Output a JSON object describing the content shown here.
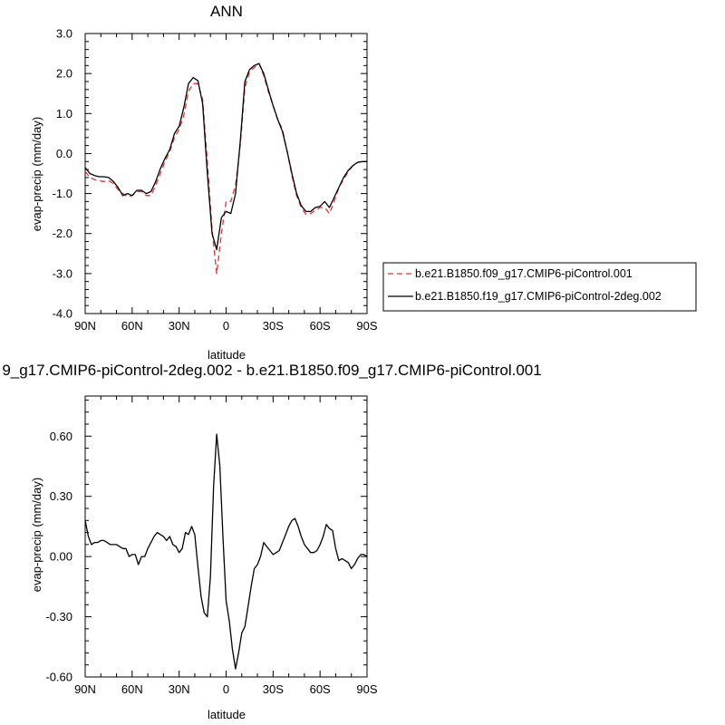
{
  "figure": {
    "top_title": "ANN",
    "bottom_title": "9_g17.CMIP6-piControl-2deg.002 - b.e21.B1850.f09_g17.CMIP6-piControl.001"
  },
  "colors": {
    "series1": "#e8302a",
    "series2": "#000000",
    "diff": "#000000",
    "frame": "#000000"
  },
  "chart_data": [
    {
      "type": "line",
      "title": "ANN",
      "xlabel": "latitude",
      "ylabel": "evap-precip (mm/day)",
      "xlim": [
        90,
        -90
      ],
      "ylim": [
        -4.0,
        3.0
      ],
      "x_ticks": [
        90,
        60,
        30,
        0,
        -30,
        -60,
        -90
      ],
      "x_tick_labels": [
        "90N",
        "60N",
        "30N",
        "0",
        "30S",
        "60S",
        "90S"
      ],
      "y_ticks": [
        -4.0,
        -3.0,
        -2.0,
        -1.0,
        0.0,
        1.0,
        2.0,
        3.0
      ],
      "y_tick_labels": [
        "-4.0",
        "-3.0",
        "-2.0",
        "-1.0",
        "0.0",
        "1.0",
        "2.0",
        "3.0"
      ],
      "grid": false,
      "legend_position": "right",
      "series": [
        {
          "name": "b.e21.B1850.f09_g17.CMIP6-piControl.001",
          "style": "dashed",
          "x": [
            90,
            87,
            84,
            81,
            78,
            75,
            72,
            69,
            66,
            63,
            60,
            57,
            54,
            51,
            48,
            45,
            42,
            39,
            36,
            33,
            30,
            27,
            24,
            21,
            18,
            15,
            12,
            9,
            6,
            3,
            0,
            -3,
            -6,
            -9,
            -12,
            -15,
            -18,
            -21,
            -24,
            -27,
            -30,
            -33,
            -36,
            -39,
            -42,
            -45,
            -48,
            -51,
            -54,
            -57,
            -60,
            -63,
            -66,
            -69,
            -72,
            -75,
            -78,
            -81,
            -84,
            -87,
            -90
          ],
          "y": [
            -0.45,
            -0.6,
            -0.65,
            -0.68,
            -0.7,
            -0.68,
            -0.75,
            -0.9,
            -1.0,
            -1.08,
            -1.05,
            -0.95,
            -0.95,
            -1.05,
            -1.05,
            -0.8,
            -0.5,
            -0.2,
            0.05,
            0.4,
            0.6,
            0.95,
            1.55,
            1.75,
            1.75,
            1.35,
            -0.2,
            -1.9,
            -3.0,
            -2.0,
            -1.2,
            -1.2,
            -0.8,
            0.2,
            1.65,
            2.05,
            2.15,
            2.25,
            1.95,
            1.55,
            1.2,
            0.85,
            0.6,
            0.05,
            -0.55,
            -1.05,
            -1.35,
            -1.52,
            -1.5,
            -1.42,
            -1.35,
            -1.35,
            -1.5,
            -1.2,
            -0.85,
            -0.65,
            -0.45,
            -0.3,
            -0.22,
            -0.2,
            -0.2
          ]
        },
        {
          "name": "b.e21.B1850.f19_g17.CMIP6-piControl-2deg.002",
          "style": "solid",
          "x": [
            90,
            87,
            84,
            81,
            78,
            75,
            72,
            69,
            66,
            63,
            60,
            57,
            54,
            51,
            48,
            45,
            42,
            39,
            36,
            33,
            30,
            27,
            24,
            21,
            18,
            15,
            12,
            9,
            6,
            3,
            0,
            -3,
            -6,
            -9,
            -12,
            -15,
            -18,
            -21,
            -24,
            -27,
            -30,
            -33,
            -36,
            -39,
            -42,
            -45,
            -48,
            -51,
            -54,
            -57,
            -60,
            -63,
            -66,
            -69,
            -72,
            -75,
            -78,
            -81,
            -84,
            -87,
            -90
          ],
          "y": [
            -0.35,
            -0.5,
            -0.55,
            -0.58,
            -0.58,
            -0.6,
            -0.7,
            -0.85,
            -1.05,
            -1.0,
            -1.05,
            -0.92,
            -0.92,
            -1.0,
            -0.95,
            -0.7,
            -0.38,
            -0.12,
            0.1,
            0.5,
            0.68,
            1.15,
            1.75,
            1.9,
            1.82,
            1.25,
            -0.5,
            -2.0,
            -2.4,
            -1.6,
            -1.45,
            -1.5,
            -1.0,
            0.3,
            1.8,
            2.1,
            2.2,
            2.25,
            2.0,
            1.6,
            1.2,
            0.85,
            0.55,
            0.05,
            -0.5,
            -1.0,
            -1.3,
            -1.45,
            -1.45,
            -1.35,
            -1.32,
            -1.2,
            -1.35,
            -1.1,
            -0.85,
            -0.6,
            -0.42,
            -0.3,
            -0.22,
            -0.2,
            -0.2
          ]
        }
      ]
    },
    {
      "type": "line",
      "title": "9_g17.CMIP6-piControl-2deg.002 - b.e21.B1850.f09_g17.CMIP6-piControl.001",
      "xlabel": "latitude",
      "ylabel": "evap-precip (mm/day)",
      "xlim": [
        90,
        -90
      ],
      "ylim": [
        -0.6,
        0.8
      ],
      "x_ticks": [
        90,
        60,
        30,
        0,
        -30,
        -60,
        -90
      ],
      "x_tick_labels": [
        "90N",
        "60N",
        "30N",
        "0",
        "30S",
        "60S",
        "90S"
      ],
      "y_ticks": [
        -0.6,
        -0.3,
        0.0,
        0.3,
        0.6
      ],
      "y_tick_labels": [
        "-0.60",
        "-0.30",
        "0.00",
        "0.30",
        "0.60"
      ],
      "grid": false,
      "series": [
        {
          "style": "solid",
          "x": [
            90,
            88,
            86,
            84,
            82,
            80,
            78,
            76,
            74,
            72,
            70,
            68,
            66,
            64,
            62,
            60,
            58,
            56,
            54,
            52,
            50,
            48,
            46,
            44,
            42,
            40,
            38,
            36,
            34,
            32,
            30,
            28,
            26,
            24,
            22,
            20,
            18,
            16,
            14,
            12,
            10,
            8,
            6,
            4,
            2,
            0,
            -2,
            -4,
            -6,
            -8,
            -10,
            -12,
            -14,
            -16,
            -18,
            -20,
            -22,
            -24,
            -26,
            -28,
            -30,
            -32,
            -34,
            -36,
            -38,
            -40,
            -42,
            -44,
            -46,
            -48,
            -50,
            -52,
            -54,
            -56,
            -58,
            -60,
            -62,
            -64,
            -66,
            -68,
            -70,
            -72,
            -74,
            -76,
            -78,
            -80,
            -82,
            -84,
            -86,
            -88,
            -90
          ],
          "y": [
            0.18,
            0.1,
            0.06,
            0.07,
            0.07,
            0.08,
            0.08,
            0.07,
            0.06,
            0.06,
            0.06,
            0.05,
            0.04,
            0.04,
            0.0,
            0.01,
            0.01,
            -0.04,
            0.0,
            0.0,
            0.04,
            0.07,
            0.1,
            0.12,
            0.11,
            0.1,
            0.08,
            0.1,
            0.06,
            0.05,
            0.02,
            0.04,
            0.12,
            0.11,
            0.15,
            0.11,
            -0.05,
            -0.2,
            -0.28,
            -0.3,
            -0.1,
            0.35,
            0.61,
            0.45,
            0.1,
            -0.22,
            -0.32,
            -0.46,
            -0.56,
            -0.48,
            -0.38,
            -0.35,
            -0.25,
            -0.15,
            -0.06,
            -0.04,
            0.0,
            0.07,
            0.05,
            0.03,
            0.01,
            0.02,
            0.03,
            0.07,
            0.11,
            0.15,
            0.18,
            0.19,
            0.15,
            0.1,
            0.06,
            0.04,
            0.02,
            0.02,
            0.03,
            0.06,
            0.1,
            0.16,
            0.14,
            0.13,
            0.04,
            -0.02,
            -0.01,
            -0.02,
            -0.03,
            -0.06,
            -0.04,
            -0.01,
            0.01,
            0.01,
            0.0
          ]
        }
      ]
    }
  ],
  "legend": {
    "entries": [
      "b.e21.B1850.f09_g17.CMIP6-piControl.001",
      "b.e21.B1850.f19_g17.CMIP6-piControl-2deg.002"
    ]
  }
}
